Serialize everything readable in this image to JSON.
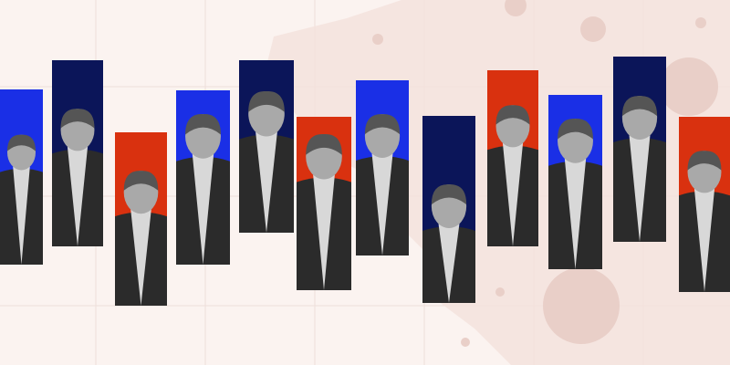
{
  "colors": {
    "background": "#fbf3f0",
    "grid": "#eedfda",
    "map_fill": "#f4e1dc",
    "map_dots": "#e9cfc8",
    "blue": "#1a2fe6",
    "navy": "#0b1559",
    "red": "#d9310f"
  },
  "bars": [
    {
      "color": "blue"
    },
    {
      "color": "navy"
    },
    {
      "color": "red"
    },
    {
      "color": "blue"
    },
    {
      "color": "navy"
    },
    {
      "color": "red"
    },
    {
      "color": "blue"
    },
    {
      "color": "navy"
    },
    {
      "color": "red"
    },
    {
      "color": "blue"
    },
    {
      "color": "navy"
    },
    {
      "color": "red"
    }
  ]
}
